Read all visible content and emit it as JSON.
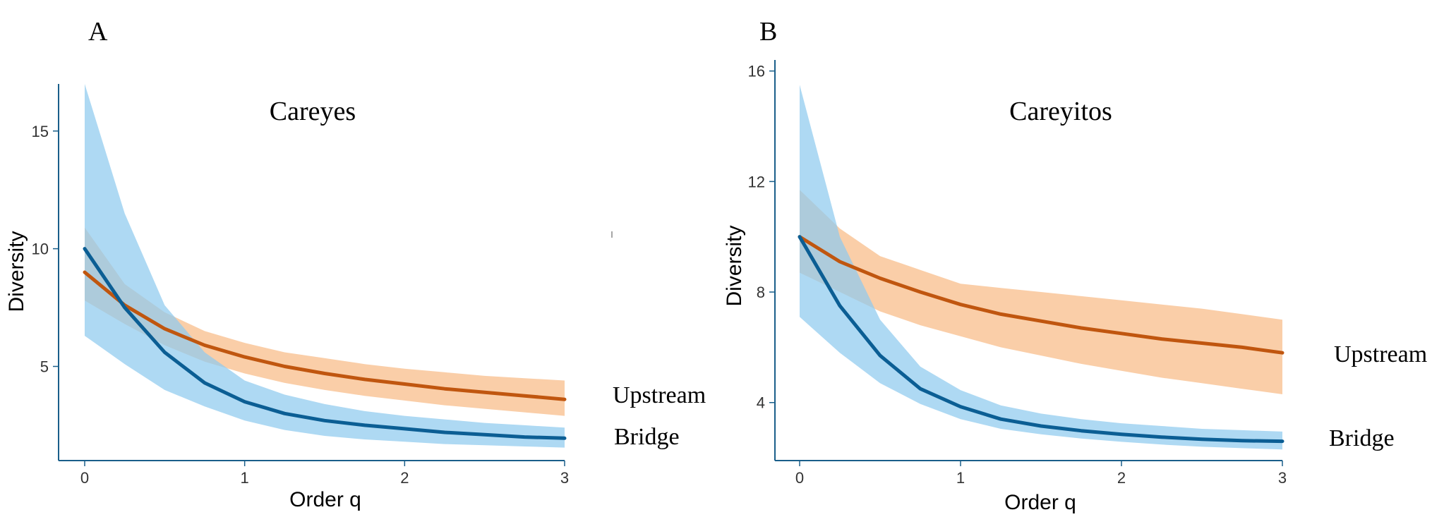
{
  "chart_data": [
    {
      "type": "line",
      "panel_label": "A",
      "title": "Careyes",
      "xlabel": "Order q",
      "ylabel": "Diversity",
      "xlim": [
        0,
        3
      ],
      "ylim": [
        1,
        17
      ],
      "xticks": [
        "0",
        "1",
        "2",
        "3"
      ],
      "yticks": [
        "5",
        "10",
        "15"
      ],
      "grid": false,
      "legend": "none",
      "x": [
        0,
        0.25,
        0.5,
        0.75,
        1,
        1.25,
        1.5,
        1.75,
        2,
        2.25,
        2.5,
        2.75,
        3
      ],
      "series": [
        {
          "name": "Upstream",
          "color": "#c0560f",
          "band_color": "#f9c08f",
          "values": [
            9.0,
            7.6,
            6.6,
            5.9,
            5.4,
            5.0,
            4.7,
            4.45,
            4.25,
            4.05,
            3.9,
            3.75,
            3.6
          ],
          "lower": [
            7.8,
            6.8,
            5.9,
            5.2,
            4.7,
            4.3,
            4.0,
            3.75,
            3.55,
            3.35,
            3.2,
            3.05,
            2.9
          ],
          "upper": [
            10.9,
            8.5,
            7.3,
            6.5,
            6.0,
            5.6,
            5.35,
            5.1,
            4.9,
            4.75,
            4.6,
            4.5,
            4.4
          ]
        },
        {
          "name": "Bridge",
          "color": "#0b5e94",
          "band_color": "#8fcbee",
          "values": [
            10.0,
            7.5,
            5.6,
            4.3,
            3.5,
            3.0,
            2.7,
            2.5,
            2.35,
            2.2,
            2.1,
            2.0,
            1.95
          ],
          "lower": [
            6.3,
            5.1,
            4.0,
            3.3,
            2.7,
            2.3,
            2.05,
            1.9,
            1.8,
            1.7,
            1.65,
            1.6,
            1.55
          ],
          "upper": [
            17.0,
            11.5,
            7.6,
            5.6,
            4.4,
            3.8,
            3.4,
            3.1,
            2.9,
            2.75,
            2.6,
            2.5,
            2.4
          ]
        }
      ]
    },
    {
      "type": "line",
      "panel_label": "B",
      "title": "Careyitos",
      "xlabel": "Order q",
      "ylabel": "Diversity",
      "xlim": [
        0,
        3
      ],
      "ylim": [
        1.9,
        16.4
      ],
      "xticks": [
        "0",
        "1",
        "2",
        "3"
      ],
      "yticks": [
        "4",
        "8",
        "12",
        "16"
      ],
      "grid": false,
      "legend": "none",
      "x": [
        0,
        0.25,
        0.5,
        0.75,
        1,
        1.25,
        1.5,
        1.75,
        2,
        2.25,
        2.5,
        2.75,
        3
      ],
      "series": [
        {
          "name": "Upstream",
          "color": "#c0560f",
          "band_color": "#f9c08f",
          "values": [
            10.0,
            9.1,
            8.5,
            8.0,
            7.55,
            7.2,
            6.95,
            6.7,
            6.5,
            6.3,
            6.15,
            6.0,
            5.8
          ],
          "lower": [
            8.7,
            8.0,
            7.3,
            6.8,
            6.4,
            6.0,
            5.7,
            5.4,
            5.15,
            4.9,
            4.7,
            4.5,
            4.3
          ],
          "upper": [
            11.7,
            10.3,
            9.3,
            8.8,
            8.3,
            8.15,
            8.0,
            7.85,
            7.7,
            7.55,
            7.4,
            7.2,
            7.0
          ]
        },
        {
          "name": "Bridge",
          "color": "#0b5e94",
          "band_color": "#8fcbee",
          "values": [
            10.0,
            7.5,
            5.7,
            4.5,
            3.85,
            3.4,
            3.15,
            2.98,
            2.85,
            2.75,
            2.67,
            2.62,
            2.6
          ],
          "lower": [
            7.1,
            5.8,
            4.7,
            3.95,
            3.4,
            3.05,
            2.85,
            2.7,
            2.58,
            2.48,
            2.4,
            2.35,
            2.3
          ],
          "upper": [
            15.5,
            10.0,
            7.0,
            5.3,
            4.45,
            3.9,
            3.6,
            3.4,
            3.25,
            3.15,
            3.05,
            3.0,
            2.95
          ]
        }
      ]
    }
  ]
}
